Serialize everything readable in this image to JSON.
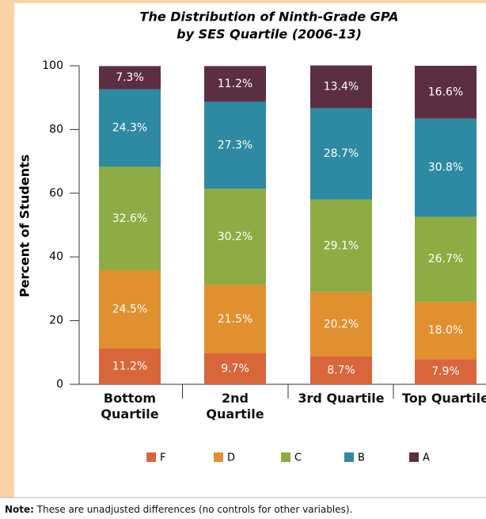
{
  "chart_data": {
    "type": "stacked_bar",
    "title": [
      "The Distribution of Ninth-Grade GPA",
      "by SES Quartile (2006-13)"
    ],
    "y_label": "Percent of Students",
    "categories": [
      "Bottom Quartile",
      "2nd Quartile",
      "3rd Quartile",
      "Top Quartile"
    ],
    "ylim": [
      0,
      100
    ],
    "yticks": [
      0,
      20,
      40,
      60,
      80,
      100
    ],
    "series": [
      {
        "name": "F",
        "color": "#d9663a",
        "values": [
          11.2,
          9.7,
          8.7,
          7.9
        ],
        "value_labels": [
          "11.2%",
          "9.7%",
          "8.7%",
          "7.9%"
        ]
      },
      {
        "name": "D",
        "color": "#e0902f",
        "values": [
          24.5,
          21.5,
          20.2,
          18.0
        ],
        "value_labels": [
          "24.5%",
          "21.5%",
          "20.2%",
          "18.0%"
        ]
      },
      {
        "name": "C",
        "color": "#8eac44",
        "values": [
          32.6,
          30.2,
          29.1,
          26.7
        ],
        "value_labels": [
          "32.6%",
          "30.2%",
          "29.1%",
          "26.7%"
        ]
      },
      {
        "name": "B",
        "color": "#2e89a2",
        "values": [
          24.3,
          27.3,
          28.7,
          30.8
        ],
        "value_labels": [
          "24.3%",
          "27.3%",
          "28.7%",
          "30.8%"
        ]
      },
      {
        "name": "A",
        "color": "#5b2f41",
        "values": [
          7.3,
          11.2,
          13.4,
          16.6
        ],
        "value_labels": [
          "7.3%",
          "11.2%",
          "13.4%",
          "16.6%"
        ]
      }
    ],
    "legend": "bottom"
  },
  "note": {
    "label": "Note:",
    "text": " These are unadjusted differences (no controls for other variables)."
  }
}
